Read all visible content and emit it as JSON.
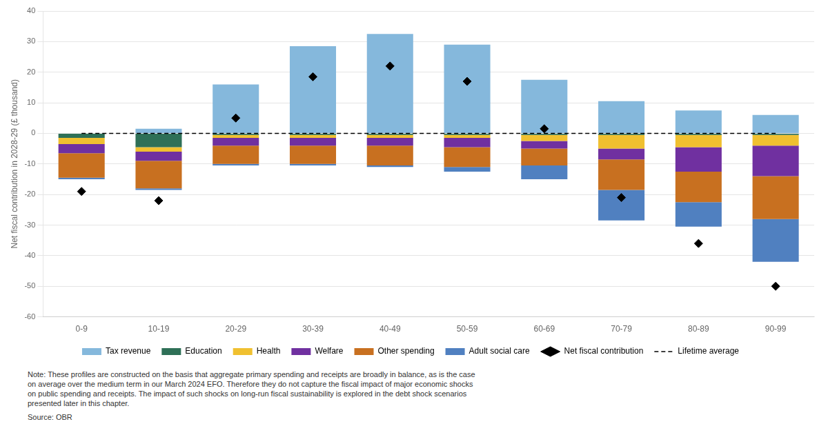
{
  "chart_data": {
    "type": "bar",
    "stacked": true,
    "ylabel": "Net fiscal contribution in 2028-29 (£ thousand)",
    "categories": [
      "0-9",
      "10-19",
      "20-29",
      "30-39",
      "40-49",
      "50-59",
      "60-69",
      "70-79",
      "80-89",
      "90-99"
    ],
    "series": [
      {
        "name": "Tax revenue",
        "color": "#85B8DC",
        "values": [
          0.0,
          1.5,
          16.0,
          28.5,
          32.5,
          29.0,
          17.5,
          10.5,
          7.5,
          6.0
        ]
      },
      {
        "name": "Education",
        "color": "#2E7057",
        "values": [
          -1.5,
          -4.5,
          -0.5,
          -0.5,
          -0.5,
          -0.5,
          -0.5,
          -0.5,
          -0.5,
          -0.5
        ]
      },
      {
        "name": "Health",
        "color": "#F0C030",
        "values": [
          -2.0,
          -1.5,
          -1.0,
          -1.0,
          -1.0,
          -1.0,
          -2.0,
          -4.5,
          -4.0,
          -3.5
        ]
      },
      {
        "name": "Welfare",
        "color": "#7030A0",
        "values": [
          -3.0,
          -3.0,
          -2.5,
          -2.5,
          -2.5,
          -3.0,
          -2.5,
          -3.5,
          -8.0,
          -10.0
        ]
      },
      {
        "name": "Other spending",
        "color": "#C87020",
        "values": [
          -8.0,
          -9.0,
          -6.0,
          -6.0,
          -6.5,
          -6.5,
          -5.5,
          -10.0,
          -10.0,
          -14.0
        ]
      },
      {
        "name": "Adult social care",
        "color": "#5080C0",
        "values": [
          -0.5,
          -0.5,
          -0.5,
          -0.5,
          -0.5,
          -1.5,
          -4.5,
          -10.0,
          -8.0,
          -14.0
        ]
      },
      {
        "name": "Net fiscal contribution",
        "type": "scatter",
        "marker": "diamond",
        "color": "black",
        "values": [
          -19,
          -22,
          5,
          18.5,
          22,
          17,
          1.5,
          -21,
          -36,
          -50
        ]
      },
      {
        "name": "Lifetime average",
        "type": "line",
        "line_style": "dashed",
        "color": "black",
        "values": [
          0,
          0,
          0,
          0,
          0,
          0,
          0,
          0,
          0,
          0
        ]
      }
    ],
    "ylim": [
      -60,
      40
    ],
    "yticks": [
      -60,
      -50,
      -40,
      -30,
      -20,
      -10,
      0,
      10,
      20,
      30,
      40
    ],
    "grid": true,
    "legend": "bottom",
    "notes": [
      "Note: These profiles are constructed on the basis that aggregate primary spending and receipts are broadly in balance, as is the case",
      "on average over the medium term in our March 2024 ​EFO. Therefore they do not capture the fiscal impact of major economic shocks",
      "on public spending and receipts. The impact of such shocks on long-run fiscal sustainability is explored in the debt shock scenarios",
      "presented later in this chapter."
    ],
    "source": "Source: OBR"
  }
}
